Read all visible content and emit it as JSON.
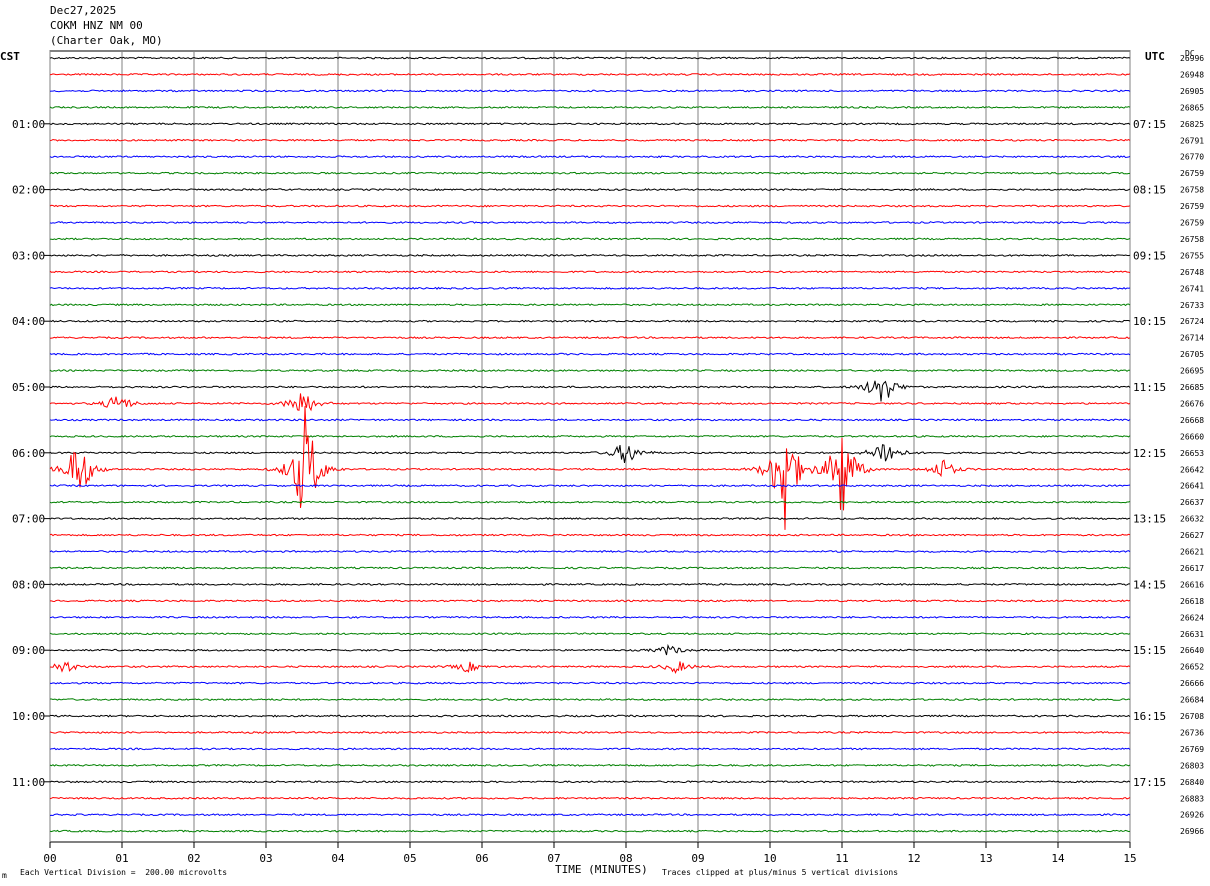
{
  "header": {
    "date": "Dec27,2025",
    "station": "COKM HNZ NM 00",
    "location": "(Charter Oak, MO)"
  },
  "left_tz": "CST",
  "right_tz": "UTC",
  "dc_label": "DC",
  "footer": {
    "vertical_division": "Each Vertical Division =  200.00 microvolts",
    "clip_note": "Traces clipped at plus/minus 5 vertical divisions",
    "corner_mark": "m"
  },
  "colors": {
    "trace_cycle": [
      "#000000",
      "#ff0000",
      "#0000ff",
      "#008000"
    ],
    "grid": "#808080"
  },
  "chart_data": {
    "type": "line",
    "title": "",
    "xlabel": "TIME (MINUTES)",
    "ylabel": "",
    "x_ticks": [
      "00",
      "01",
      "02",
      "03",
      "04",
      "05",
      "06",
      "07",
      "08",
      "09",
      "10",
      "11",
      "12",
      "13",
      "14",
      "15"
    ],
    "xlim": [
      0,
      15
    ],
    "trace_count": 48,
    "grid": true,
    "left_hour_labels": [
      {
        "trace": 4,
        "label": "01:00"
      },
      {
        "trace": 8,
        "label": "02:00"
      },
      {
        "trace": 12,
        "label": "03:00"
      },
      {
        "trace": 16,
        "label": "04:00"
      },
      {
        "trace": 20,
        "label": "05:00"
      },
      {
        "trace": 24,
        "label": "06:00"
      },
      {
        "trace": 28,
        "label": "07:00"
      },
      {
        "trace": 32,
        "label": "08:00"
      },
      {
        "trace": 36,
        "label": "09:00"
      },
      {
        "trace": 40,
        "label": "10:00"
      },
      {
        "trace": 44,
        "label": "11:00"
      }
    ],
    "right_hour_labels": [
      {
        "trace": 4,
        "label": "07:15"
      },
      {
        "trace": 8,
        "label": "08:15"
      },
      {
        "trace": 12,
        "label": "09:15"
      },
      {
        "trace": 16,
        "label": "10:15"
      },
      {
        "trace": 20,
        "label": "11:15"
      },
      {
        "trace": 24,
        "label": "12:15"
      },
      {
        "trace": 28,
        "label": "13:15"
      },
      {
        "trace": 32,
        "label": "14:15"
      },
      {
        "trace": 36,
        "label": "15:15"
      },
      {
        "trace": 40,
        "label": "16:15"
      },
      {
        "trace": 44,
        "label": "17:15"
      }
    ],
    "dc_values": [
      "26996",
      "26948",
      "26905",
      "26865",
      "26825",
      "26791",
      "26770",
      "26759",
      "26758",
      "26759",
      "26759",
      "26758",
      "26755",
      "26748",
      "26741",
      "26733",
      "26724",
      "26714",
      "26705",
      "26695",
      "26685",
      "26676",
      "26668",
      "26660",
      "26653",
      "26642",
      "26641",
      "26637",
      "26632",
      "26627",
      "26621",
      "26617",
      "26616",
      "26618",
      "26624",
      "26631",
      "26640",
      "26652",
      "26666",
      "26684",
      "26708",
      "26736",
      "26769",
      "26803",
      "26840",
      "26883",
      "26926",
      "26966"
    ],
    "events": [
      {
        "trace": 20,
        "minute": 11.55,
        "amplitude": 1.6
      },
      {
        "trace": 21,
        "minute": 3.5,
        "amplitude": 1.2
      },
      {
        "trace": 21,
        "minute": 0.95,
        "amplitude": 0.8
      },
      {
        "trace": 24,
        "minute": 8.0,
        "amplitude": 1.0
      },
      {
        "trace": 24,
        "minute": 11.6,
        "amplitude": 1.2
      },
      {
        "trace": 25,
        "minute": 0.4,
        "amplitude": 2.5
      },
      {
        "trace": 25,
        "minute": 3.55,
        "amplitude": 5.0
      },
      {
        "trace": 25,
        "minute": 10.2,
        "amplitude": 5.0
      },
      {
        "trace": 25,
        "minute": 11.0,
        "amplitude": 4.0
      },
      {
        "trace": 25,
        "minute": 12.4,
        "amplitude": 0.8
      },
      {
        "trace": 36,
        "minute": 8.6,
        "amplitude": 0.4
      },
      {
        "trace": 37,
        "minute": 0.2,
        "amplitude": 0.5
      },
      {
        "trace": 37,
        "minute": 5.8,
        "amplitude": 0.4
      },
      {
        "trace": 37,
        "minute": 8.7,
        "amplitude": 0.5
      }
    ]
  }
}
